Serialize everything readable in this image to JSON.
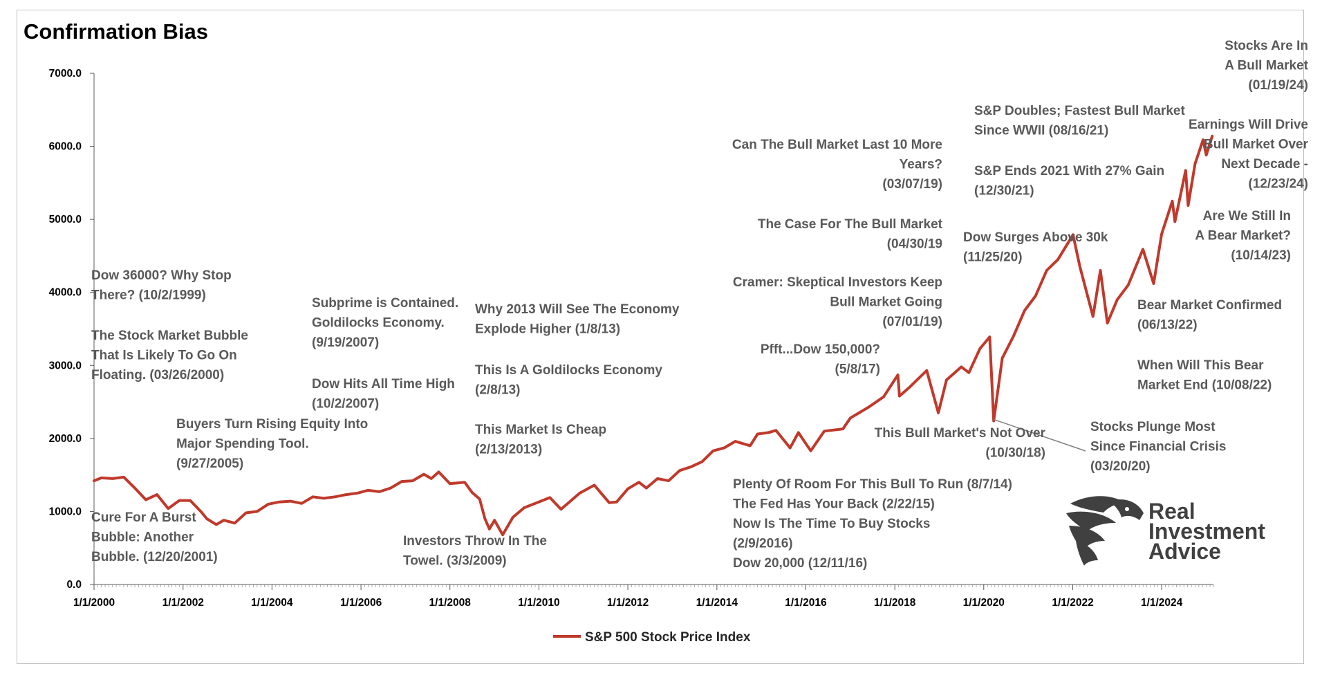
{
  "chart_data": {
    "type": "line",
    "title": "Confirmation Bias",
    "xlabel": "",
    "ylabel": "",
    "ylim": [
      0,
      7000
    ],
    "xlim": [
      "2000-01-01",
      "2025-03-01"
    ],
    "yticks": [
      "0.0",
      "1000.0",
      "2000.0",
      "3000.0",
      "4000.0",
      "5000.0",
      "6000.0",
      "7000.0"
    ],
    "xticks": [
      {
        "date": "2000-01-01",
        "label": "1/1/2000"
      },
      {
        "date": "2002-01-01",
        "label": "1/1/2002"
      },
      {
        "date": "2004-01-01",
        "label": "1/1/2004"
      },
      {
        "date": "2006-01-01",
        "label": "1/1/2006"
      },
      {
        "date": "2008-01-01",
        "label": "1/1/2008"
      },
      {
        "date": "2010-01-01",
        "label": "1/1/2010"
      },
      {
        "date": "2012-01-01",
        "label": "1/1/2012"
      },
      {
        "date": "2014-01-01",
        "label": "1/1/2014"
      },
      {
        "date": "2016-01-01",
        "label": "1/1/2016"
      },
      {
        "date": "2018-01-01",
        "label": "1/1/2018"
      },
      {
        "date": "2020-01-01",
        "label": "1/1/2020"
      },
      {
        "date": "2022-01-01",
        "label": "1/1/2022"
      },
      {
        "date": "2024-01-01",
        "label": "1/1/2024"
      }
    ],
    "grid": false,
    "legend_position": "bottom",
    "series": [
      {
        "name": "S&P 500 Stock Price Index",
        "color": "#c0392b",
        "points": [
          [
            "2000-01-01",
            1420
          ],
          [
            "2000-03-01",
            1460
          ],
          [
            "2000-06-01",
            1450
          ],
          [
            "2000-09-01",
            1470
          ],
          [
            "2000-12-01",
            1320
          ],
          [
            "2001-03-01",
            1160
          ],
          [
            "2001-06-01",
            1230
          ],
          [
            "2001-09-01",
            1040
          ],
          [
            "2001-12-01",
            1150
          ],
          [
            "2002-03-01",
            1150
          ],
          [
            "2002-06-01",
            990
          ],
          [
            "2002-07-15",
            900
          ],
          [
            "2002-10-01",
            820
          ],
          [
            "2002-12-01",
            880
          ],
          [
            "2003-03-01",
            840
          ],
          [
            "2003-06-01",
            980
          ],
          [
            "2003-09-01",
            1000
          ],
          [
            "2003-12-01",
            1100
          ],
          [
            "2004-03-01",
            1130
          ],
          [
            "2004-06-01",
            1140
          ],
          [
            "2004-09-01",
            1110
          ],
          [
            "2004-12-01",
            1200
          ],
          [
            "2005-03-01",
            1180
          ],
          [
            "2005-06-01",
            1200
          ],
          [
            "2005-09-01",
            1230
          ],
          [
            "2005-12-01",
            1250
          ],
          [
            "2006-03-01",
            1290
          ],
          [
            "2006-06-01",
            1270
          ],
          [
            "2006-09-01",
            1320
          ],
          [
            "2006-12-01",
            1410
          ],
          [
            "2007-03-01",
            1420
          ],
          [
            "2007-06-01",
            1510
          ],
          [
            "2007-08-01",
            1450
          ],
          [
            "2007-10-01",
            1540
          ],
          [
            "2008-01-01",
            1380
          ],
          [
            "2008-05-01",
            1400
          ],
          [
            "2008-07-01",
            1260
          ],
          [
            "2008-09-01",
            1170
          ],
          [
            "2008-10-15",
            900
          ],
          [
            "2008-11-20",
            760
          ],
          [
            "2009-01-01",
            880
          ],
          [
            "2009-03-09",
            680
          ],
          [
            "2009-06-01",
            920
          ],
          [
            "2009-09-01",
            1050
          ],
          [
            "2009-12-01",
            1110
          ],
          [
            "2010-04-01",
            1190
          ],
          [
            "2010-07-01",
            1030
          ],
          [
            "2010-12-01",
            1250
          ],
          [
            "2011-04-01",
            1360
          ],
          [
            "2011-08-01",
            1120
          ],
          [
            "2011-10-01",
            1130
          ],
          [
            "2012-01-01",
            1310
          ],
          [
            "2012-04-01",
            1400
          ],
          [
            "2012-06-01",
            1320
          ],
          [
            "2012-09-01",
            1450
          ],
          [
            "2012-12-01",
            1420
          ],
          [
            "2013-03-01",
            1560
          ],
          [
            "2013-06-01",
            1610
          ],
          [
            "2013-09-01",
            1680
          ],
          [
            "2013-12-01",
            1830
          ],
          [
            "2014-03-01",
            1870
          ],
          [
            "2014-06-01",
            1960
          ],
          [
            "2014-10-01",
            1900
          ],
          [
            "2014-12-01",
            2060
          ],
          [
            "2015-03-01",
            2080
          ],
          [
            "2015-05-01",
            2110
          ],
          [
            "2015-08-25",
            1870
          ],
          [
            "2015-11-01",
            2080
          ],
          [
            "2016-01-01",
            1930
          ],
          [
            "2016-02-11",
            1830
          ],
          [
            "2016-06-01",
            2100
          ],
          [
            "2016-11-01",
            2130
          ],
          [
            "2017-01-01",
            2280
          ],
          [
            "2017-06-01",
            2430
          ],
          [
            "2017-10-01",
            2570
          ],
          [
            "2018-01-26",
            2870
          ],
          [
            "2018-02-08",
            2580
          ],
          [
            "2018-05-01",
            2700
          ],
          [
            "2018-09-20",
            2930
          ],
          [
            "2018-12-24",
            2350
          ],
          [
            "2019-03-01",
            2800
          ],
          [
            "2019-07-01",
            2980
          ],
          [
            "2019-09-01",
            2900
          ],
          [
            "2019-12-01",
            3230
          ],
          [
            "2020-02-19",
            3390
          ],
          [
            "2020-03-23",
            2240
          ],
          [
            "2020-06-01",
            3100
          ],
          [
            "2020-09-01",
            3400
          ],
          [
            "2020-12-01",
            3750
          ],
          [
            "2021-03-01",
            3950
          ],
          [
            "2021-06-01",
            4300
          ],
          [
            "2021-09-01",
            4450
          ],
          [
            "2022-01-03",
            4790
          ],
          [
            "2022-03-01",
            4350
          ],
          [
            "2022-06-16",
            3670
          ],
          [
            "2022-08-16",
            4300
          ],
          [
            "2022-10-12",
            3580
          ],
          [
            "2023-01-01",
            3900
          ],
          [
            "2023-04-01",
            4100
          ],
          [
            "2023-07-31",
            4590
          ],
          [
            "2023-10-27",
            4120
          ],
          [
            "2024-01-01",
            4800
          ],
          [
            "2024-03-28",
            5250
          ],
          [
            "2024-04-19",
            4970
          ],
          [
            "2024-07-16",
            5670
          ],
          [
            "2024-08-05",
            5190
          ],
          [
            "2024-10-01",
            5760
          ],
          [
            "2024-12-06",
            6090
          ],
          [
            "2025-01-01",
            5880
          ],
          [
            "2025-02-19",
            6140
          ]
        ]
      }
    ],
    "annotations": [
      {
        "id": "a01",
        "lines": [
          "Dow 36000? Why Stop",
          "There?  (10/2/1999)"
        ]
      },
      {
        "id": "a02",
        "lines": [
          "The Stock Market Bubble",
          "That Is Likely To Go On",
          "Floating. (03/26/2000)"
        ]
      },
      {
        "id": "a03",
        "lines": [
          "Cure For A Burst",
          "Bubble: Another",
          "Bubble.  (12/20/2001)"
        ]
      },
      {
        "id": "a04",
        "lines": [
          "Buyers Turn Rising Equity Into",
          "Major Spending Tool.",
          "(9/27/2005)"
        ]
      },
      {
        "id": "a05",
        "lines": [
          "Subprime is Contained.",
          "Goldilocks Economy.",
          "(9/19/2007)"
        ]
      },
      {
        "id": "a06",
        "lines": [
          "Dow Hits All Time High",
          "(10/2/2007)"
        ]
      },
      {
        "id": "a07",
        "lines": [
          "Why 2013 Will See The Economy",
          "Explode Higher (1/8/13)"
        ]
      },
      {
        "id": "a08",
        "lines": [
          "This Is A Goldilocks Economy",
          "(2/8/13)"
        ]
      },
      {
        "id": "a09",
        "lines": [
          "This Market Is Cheap",
          "(2/13/2013)"
        ]
      },
      {
        "id": "a10",
        "lines": [
          "Investors Throw In The",
          "Towel.  (3/3/2009)"
        ]
      },
      {
        "id": "a11",
        "lines": [
          "Can The Bull Market Last 10 More",
          "Years?",
          "(03/07/19)"
        ]
      },
      {
        "id": "a12",
        "lines": [
          "The Case For The Bull Market",
          "(04/30/19"
        ]
      },
      {
        "id": "a13",
        "lines": [
          "Cramer: Skeptical Investors Keep",
          "Bull Market Going",
          "(07/01/19)"
        ]
      },
      {
        "id": "a14",
        "lines": [
          "Pfft...Dow 150,000?",
          "(5/8/17)"
        ]
      },
      {
        "id": "a15",
        "lines": [
          "This Bull Market's Not Over",
          "(10/30/18)"
        ]
      },
      {
        "id": "a16",
        "lines": [
          "Plenty Of Room For This Bull To Run (8/7/14)",
          "The Fed Has Your Back (2/22/15)",
          "Now Is The Time To Buy Stocks",
          "(2/9/2016)",
          "Dow 20,000  (12/11/16)"
        ]
      },
      {
        "id": "a17",
        "lines": [
          "S&P Doubles; Fastest Bull Market",
          "Since WWII (08/16/21)"
        ]
      },
      {
        "id": "a18",
        "lines": [
          "S&P Ends 2021 With 27% Gain",
          "(12/30/21)"
        ]
      },
      {
        "id": "a19",
        "lines": [
          "Dow Surges Above 30k",
          "(11/25/20)"
        ]
      },
      {
        "id": "a20",
        "lines": [
          "Stocks Plunge Most",
          "Since Financial Crisis",
          "(03/20/20)"
        ]
      },
      {
        "id": "a21",
        "lines": [
          "Stocks Are In",
          "A Bull Market",
          "(01/19/24)"
        ]
      },
      {
        "id": "a22",
        "lines": [
          "Earnings Will Drive",
          "Bull Market Over",
          "Next Decade -",
          "(12/23/24)"
        ]
      },
      {
        "id": "a23",
        "lines": [
          "Are We Still In",
          "A Bear Market?",
          "(10/14/23)"
        ]
      },
      {
        "id": "a24",
        "lines": [
          "Bear Market Confirmed",
          "(06/13/22)"
        ]
      },
      {
        "id": "a25",
        "lines": [
          "When Will This Bear",
          "Market End (10/08/22)"
        ]
      }
    ]
  },
  "logo": {
    "lines": [
      "Real",
      "Investment",
      "Advice"
    ],
    "color": "#404040"
  }
}
